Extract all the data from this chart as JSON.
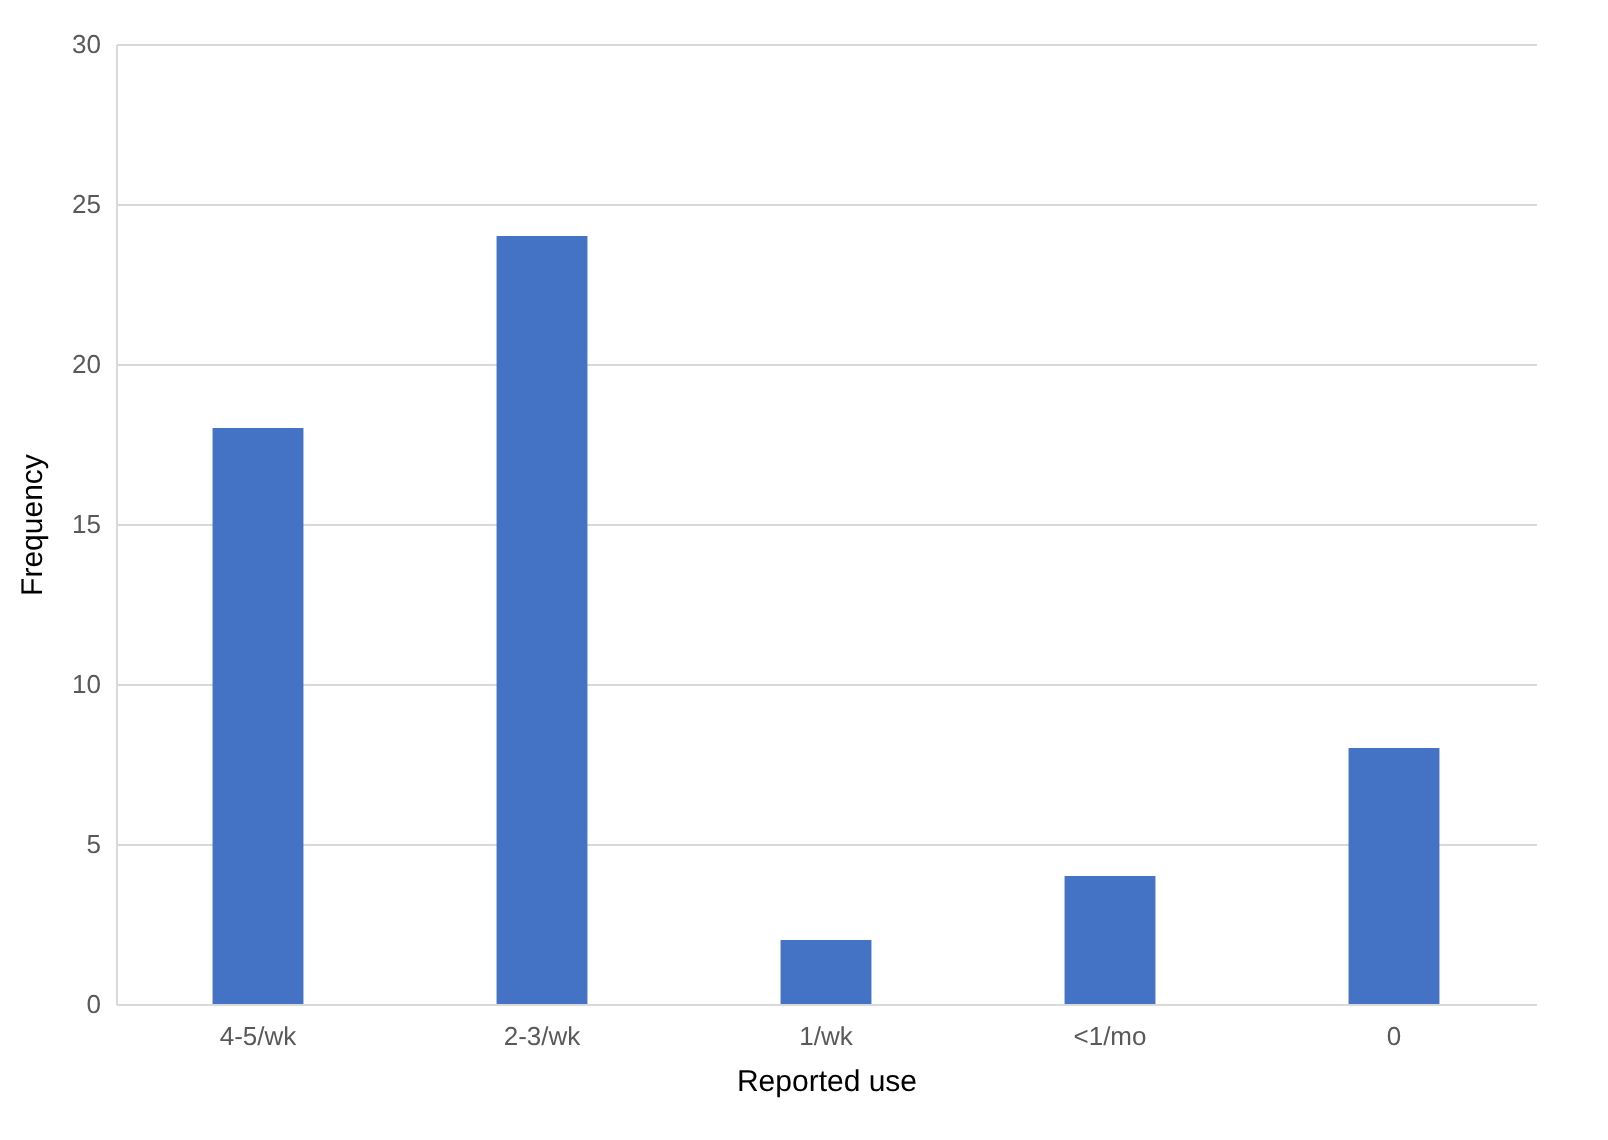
{
  "chart_data": {
    "type": "bar",
    "xlabel": "Reported use",
    "ylabel": "Frequency",
    "categories": [
      "4-5/wk",
      "2-3/wk",
      "1/wk",
      "<1/mo",
      "0"
    ],
    "values": [
      18,
      24,
      2,
      4,
      8
    ],
    "color": "#4472c4",
    "ylim": [
      0,
      30
    ],
    "yticks": [
      0,
      5,
      10,
      15,
      20,
      25,
      30
    ],
    "grid": "y"
  }
}
